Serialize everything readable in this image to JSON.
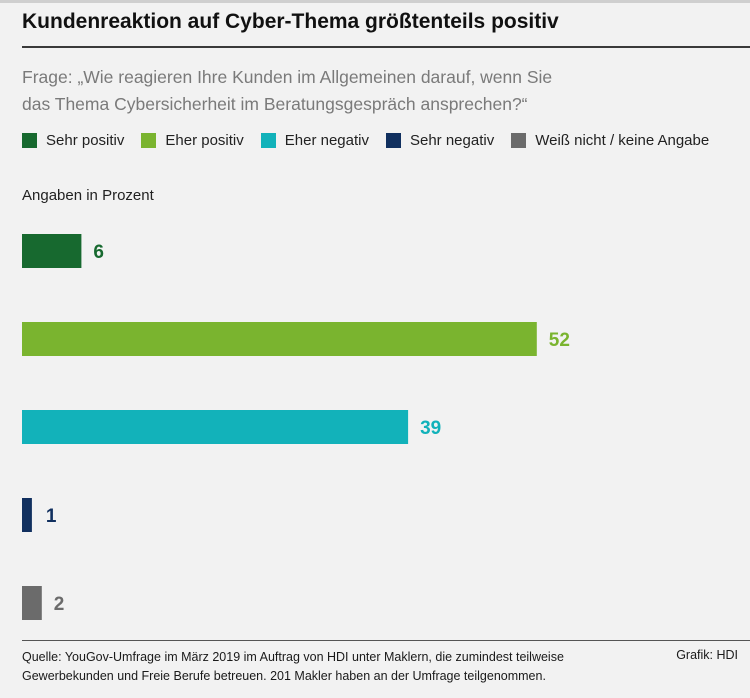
{
  "header": {
    "title": "Kundenreaktion auf Cyber-Thema größtenteils positiv",
    "question_line1": "Frage: „Wie reagieren Ihre Kunden im Allgemeinen darauf, wenn Sie",
    "question_line2": "das Thema Cybersicherheit im Beratungsgespräch ansprechen?“"
  },
  "legend": [
    {
      "label": "Sehr positiv",
      "color": "#17692f"
    },
    {
      "label": "Eher positiv",
      "color": "#7ab42f"
    },
    {
      "label": "Eher negativ",
      "color": "#12b2ba"
    },
    {
      "label": "Sehr negativ",
      "color": "#11305f"
    },
    {
      "label": "Weiß nicht / keine Angabe",
      "color": "#6b6b6b"
    }
  ],
  "unit_note": "Angaben in Prozent",
  "chart_data": {
    "type": "bar",
    "orientation": "horizontal",
    "categories": [
      "Sehr positiv",
      "Eher positiv",
      "Eher negativ",
      "Sehr negativ",
      "Weiß nicht / keine Angabe"
    ],
    "values": [
      6,
      52,
      39,
      1,
      2
    ],
    "value_labels": [
      "6",
      "52",
      "39",
      "1",
      "2"
    ],
    "colors": [
      "#17692f",
      "#7ab42f",
      "#12b2ba",
      "#11305f",
      "#6b6b6b"
    ],
    "xlim": [
      0,
      100
    ],
    "grid": false,
    "axes_visible": false,
    "legend_position": "top"
  },
  "footer": {
    "source_line1": "Quelle: YouGov-Umfrage im März 2019 im Auftrag von HDI unter Maklern, die zumindest teilweise",
    "source_line2": "Gewerbekunden und Freie Berufe betreuen. 201 Makler haben an der Umfrage teilgenommen.",
    "credit": "Grafik: HDI"
  }
}
